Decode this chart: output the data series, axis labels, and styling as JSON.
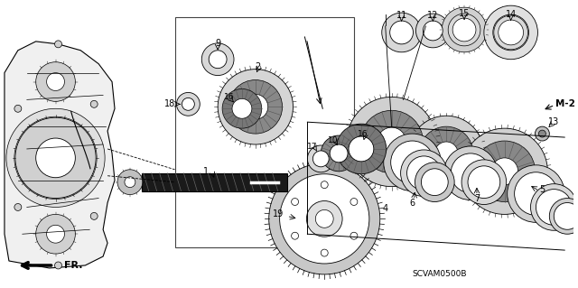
{
  "bg_color": "#ffffff",
  "line_color": "#000000",
  "dark_fill": "#1a1a1a",
  "mid_fill": "#555555",
  "light_fill": "#aaaaaa",
  "lighter_fill": "#cccccc",
  "white_fill": "#ffffff",
  "code": "SCVAM0500B",
  "figsize": [
    6.4,
    3.19
  ],
  "dpi": 100
}
